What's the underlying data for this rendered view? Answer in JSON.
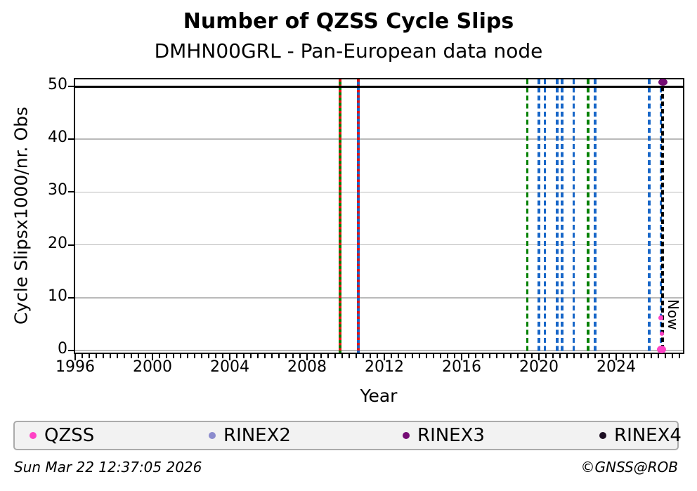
{
  "chart_data": {
    "type": "scatter",
    "title": "Number of QZSS Cycle Slips",
    "subtitle": "DMHN00GRL - Pan-European data node",
    "xlabel": "Year",
    "ylabel": "Cycle Slipsx1000/nr. Obs",
    "xlim": [
      1996,
      2027.5
    ],
    "ylim": [
      -0.4,
      51.3
    ],
    "grid": "horizontal-major",
    "x_major_ticks": [
      1996,
      2000,
      2004,
      2008,
      2012,
      2016,
      2020,
      2024
    ],
    "y_ticks": [
      0,
      10,
      20,
      30,
      40,
      50
    ],
    "hline": {
      "value": 50,
      "color": "#000000"
    },
    "vlines": [
      {
        "year": 2009.7,
        "color": "#008000",
        "style": "solid-with-red-dashes"
      },
      {
        "year": 2010.65,
        "color": "#1766c8",
        "style": "solid-with-red-dashes"
      },
      {
        "year": 2019.4,
        "color": "#008000",
        "style": "dashed"
      },
      {
        "year": 2020.0,
        "color": "#1766c8",
        "style": "dashed"
      },
      {
        "year": 2020.3,
        "color": "#1766c8",
        "style": "dashed"
      },
      {
        "year": 2020.95,
        "color": "#1766c8",
        "style": "dashed"
      },
      {
        "year": 2021.2,
        "color": "#1766c8",
        "style": "dashed"
      },
      {
        "year": 2021.8,
        "color": "#1766c8",
        "style": "dashed"
      },
      {
        "year": 2022.55,
        "color": "#008000",
        "style": "dashed"
      },
      {
        "year": 2022.9,
        "color": "#1766c8",
        "style": "dashed"
      },
      {
        "year": 2025.7,
        "color": "#1766c8",
        "style": "dashed"
      },
      {
        "year": 2026.3,
        "color": "#1766c8",
        "style": "dashed"
      }
    ],
    "now_marker": {
      "year": 2026.4,
      "label": "Now",
      "color": "#000000",
      "style": "dashed"
    },
    "points": [
      {
        "series": "RINEX3",
        "year": 2026.4,
        "value": 50.8,
        "w": 13,
        "h": 10
      },
      {
        "series": "QZSS",
        "year": 2026.3,
        "value": 6.2,
        "w": 7,
        "h": 7
      },
      {
        "series": "QZSS",
        "year": 2026.35,
        "value": 3.2,
        "w": 6,
        "h": 6
      },
      {
        "series": "QZSS",
        "year": 2026.35,
        "value": 0.2,
        "w": 13,
        "h": 11
      }
    ],
    "legend": {
      "position": "bottom",
      "entries": [
        {
          "label": "QZSS",
          "color": "#ff42c5"
        },
        {
          "label": "RINEX2",
          "color": "#8b8bcd"
        },
        {
          "label": "RINEX3",
          "color": "#750c75"
        },
        {
          "label": "RINEX4",
          "color": "#1c0e22"
        }
      ]
    },
    "colors": {
      "grid": "#bababa",
      "red_dash": "#e51212",
      "spine": "#000000"
    }
  },
  "footer": {
    "left": "Sun Mar 22 12:37:05 2026",
    "right": "©GNSS@ROB"
  }
}
